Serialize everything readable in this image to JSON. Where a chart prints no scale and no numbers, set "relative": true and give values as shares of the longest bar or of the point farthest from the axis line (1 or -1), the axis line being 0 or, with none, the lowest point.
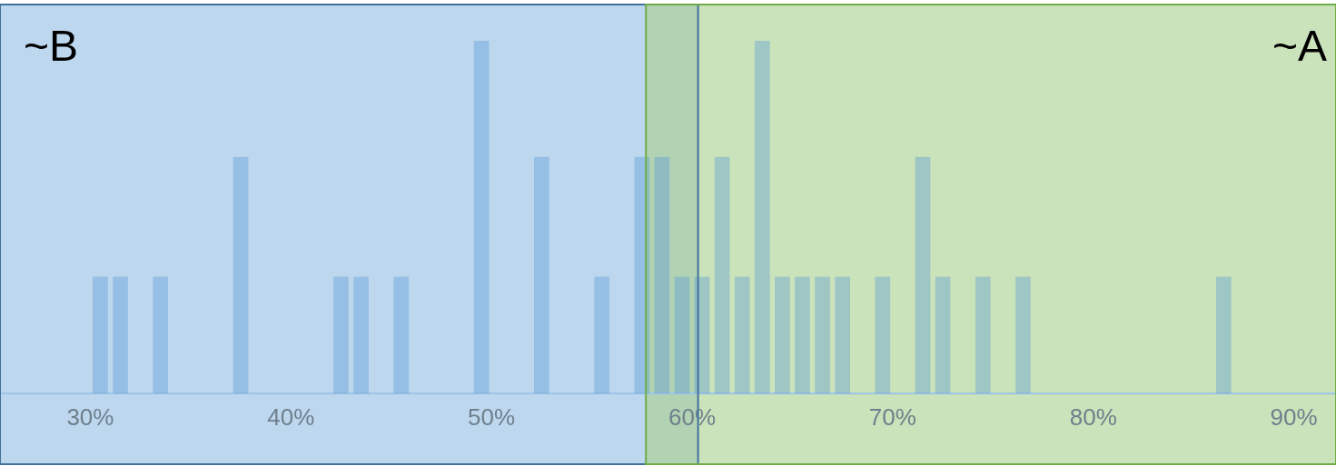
{
  "chart_data": {
    "type": "bar",
    "relative": true,
    "color": "#5b9bd5",
    "x": [
      30.5,
      31.5,
      33.5,
      37.5,
      42.5,
      43.5,
      45.5,
      49.5,
      52.5,
      55.5,
      57.5,
      58.5,
      59.5,
      60.5,
      61.5,
      62.5,
      63.5,
      64.5,
      65.5,
      66.5,
      67.5,
      69.5,
      71.5,
      72.5,
      74.5,
      76.5,
      86.5
    ],
    "values": [
      0.33,
      0.33,
      0.33,
      0.67,
      0.33,
      0.33,
      0.33,
      1,
      0.67,
      0.33,
      0.67,
      0.67,
      0.33,
      0.33,
      0.67,
      0.33,
      1,
      0.33,
      0.33,
      0.33,
      0.33,
      0.33,
      0.67,
      0.33,
      0.33,
      0.33,
      0.33
    ],
    "xlim": [
      25.5,
      92.1
    ],
    "xticks": [
      {
        "value": 30,
        "label": "30%"
      },
      {
        "value": 40,
        "label": "40%"
      },
      {
        "value": 50,
        "label": "50%"
      },
      {
        "value": 60,
        "label": "60%"
      },
      {
        "value": 70,
        "label": "70%"
      },
      {
        "value": 80,
        "label": "80%"
      },
      {
        "value": 90,
        "label": "90%"
      }
    ],
    "bands": [
      {
        "axis": "x",
        "from": 25.5,
        "to": 60.3,
        "label": "~B",
        "color": "#bdd7ee"
      },
      {
        "axis": "x",
        "from": 57.7,
        "to": 92.1,
        "label": "~A",
        "color": "#a9d18e"
      }
    ],
    "grid": false,
    "legend": false
  }
}
